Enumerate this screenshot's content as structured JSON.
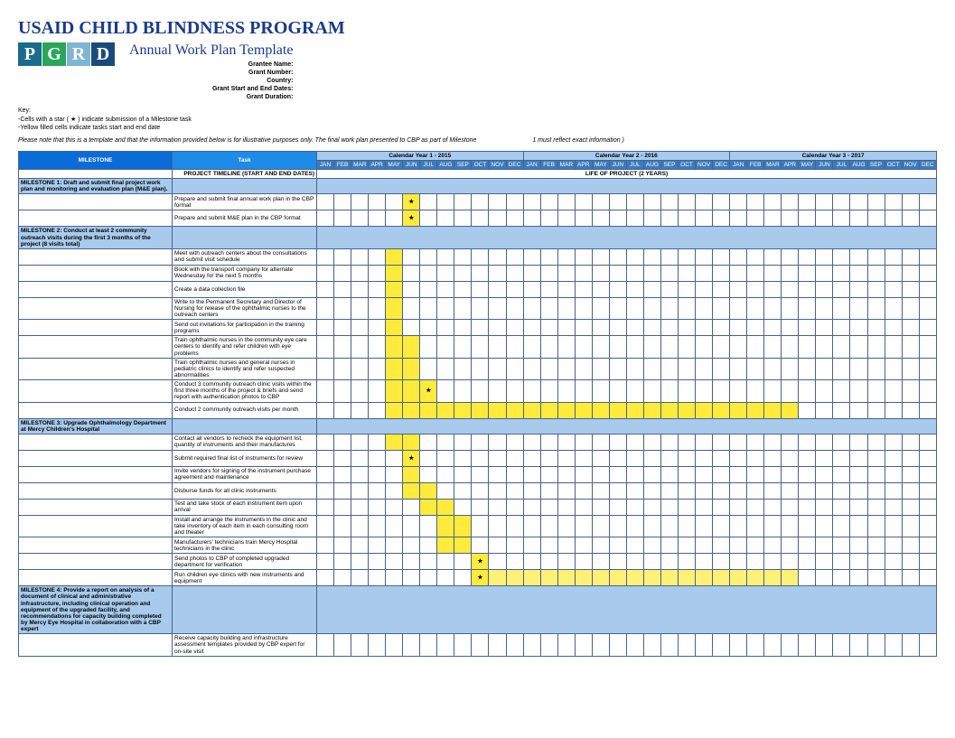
{
  "header": {
    "title": "USAID CHILD BLINDNESS PROGRAM",
    "subtitle": "Annual Work Plan Template",
    "logo": [
      {
        "letter": "P",
        "bg": "#1a6b8c"
      },
      {
        "letter": "G",
        "bg": "#2aa55a"
      },
      {
        "letter": "R",
        "bg": "#7fb5d1"
      },
      {
        "letter": "D",
        "bg": "#1a4a7a"
      }
    ],
    "meta_labels": [
      "Grantee Name:",
      "Grant Number:",
      "Country:",
      "Grant Start and End Dates:",
      "Grant Duration:"
    ]
  },
  "key": {
    "heading": "Key:",
    "lines": [
      "-Cells with a star ( ★ ) indicate submission of a Milestone task",
      "-Yellow filled cells indicate tasks start and end date"
    ]
  },
  "note": {
    "left": "Please note that this is a template and that the information provided below is for illustrative purposes only. The final work plan presented to CBP as part of Milestone",
    "right": "1 must reflect exact information )"
  },
  "columns": {
    "milestone": "MILESTONE",
    "task": "Task",
    "timeline_label": "PROJECT TIMELINE (START AND END DATES)",
    "life_label": "LIFE OF PROJECT (2 YEARS)",
    "years": [
      {
        "label": "Calendar Year 1 - 2015"
      },
      {
        "label": "Calendar Year 2 - 2016"
      },
      {
        "label": "Calendar Year 3 - 2017"
      }
    ],
    "months": [
      "JAN",
      "FEB",
      "MAR",
      "APR",
      "MAY",
      "JUN",
      "JUL",
      "AUG",
      "SEP",
      "OCT",
      "NOV",
      "DEC"
    ]
  },
  "milestones": [
    {
      "title": "MILESTONE 1: Draft and submit final project work plan and monitoring and evaluation plan (M&E plan).",
      "tasks": [
        {
          "text": "Prepare and submit final annual work plan in the CBP format",
          "cells": {
            "6": "star"
          }
        },
        {
          "text": "Prepare and submit M&E plan in the CBP format",
          "cells": {
            "6": "star"
          }
        }
      ]
    },
    {
      "title": "MILESTONE 2: Conduct at least 2 community outreach visits during the first 3 months of the project (8 visits total)",
      "tasks": [
        {
          "text": "Meet with outreach centers about the consultations and submit visit schedule",
          "cells": {
            "5": "y"
          }
        },
        {
          "text": "Book with the transport company for alternate Wednesday for the next 5 months",
          "cells": {
            "5": "y"
          }
        },
        {
          "text": "Create a data collection file",
          "cells": {
            "5": "y"
          }
        },
        {
          "text": "Write to the Permanent Secretary and Director of Nursing for release of the ophthalmic nurses to the outreach centers",
          "cells": {
            "5": "y"
          }
        },
        {
          "text": "Send out invitations for participation in the training programs",
          "cells": {
            "5": "y"
          }
        },
        {
          "text": "Train ophthalmic nurses in the community eye care centers to identify and refer children with eye problems",
          "cells": {
            "5": "y",
            "6": "y"
          }
        },
        {
          "text": "Train ophthalmic nurses and general nurses in pediatric clinics to identify and refer suspected abnormalities",
          "cells": {
            "5": "y",
            "6": "y"
          }
        },
        {
          "text": "Conduct 3 community outreach clinic visits within the first three months of the project & briefs and send report with authentication photos to CBP",
          "cells": {
            "5": "y",
            "6": "y",
            "7": "star"
          }
        },
        {
          "text": "Conduct 2 community outreach visits per month",
          "cells": {
            "5": "y",
            "6": "y",
            "7": "y",
            "8": "y",
            "9": "y",
            "10": "y",
            "11": "y",
            "12": "y",
            "13": "y",
            "14": "y",
            "15": "y",
            "16": "y",
            "17": "y",
            "18": "y",
            "19": "y",
            "20": "y",
            "21": "y",
            "22": "y",
            "23": "y",
            "24": "y",
            "25": "y",
            "26": "y",
            "27": "y",
            "28": "y"
          }
        }
      ]
    },
    {
      "title": "MILESTONE 3: Upgrade Ophthalmology Department at Mercy Children's Hospital",
      "tasks": [
        {
          "text": "Contact all vendors to recheck the equipment list, quantity of instruments and their manufactures",
          "cells": {
            "5": "y",
            "6": "y"
          }
        },
        {
          "text": "Submit required final list of instruments for review",
          "cells": {
            "6": "star"
          }
        },
        {
          "text": "Invite vendors for signing of the instrument purchase agreement and maintenance",
          "cells": {
            "6": "y"
          }
        },
        {
          "text": "Disburse funds for all clinic instruments",
          "cells": {
            "6": "y",
            "7": "y"
          }
        },
        {
          "text": "Test and take stock of each instrument item upon arrival",
          "cells": {
            "7": "y",
            "8": "y"
          }
        },
        {
          "text": "Install and arrange the instruments in the clinic and take inventory of each item in each consulting room and theater",
          "cells": {
            "8": "y",
            "9": "y"
          }
        },
        {
          "text": "Manufacturers' technicians train Mercy Hospital technicians in the clinic",
          "cells": {
            "8": "y",
            "9": "y"
          }
        },
        {
          "text": "Send photos to CBP of completed upgraded department for verification",
          "cells": {
            "10": "star"
          }
        },
        {
          "text": "Run children eye clinics with new instruments and equipment",
          "cells": {
            "10": "star",
            "11": "y2",
            "12": "y2",
            "13": "y2",
            "14": "y2",
            "15": "y2",
            "16": "y2",
            "17": "y2",
            "18": "y2",
            "19": "y2",
            "20": "y2",
            "21": "y2",
            "22": "y2",
            "23": "y2",
            "24": "y2",
            "25": "y2",
            "26": "y2",
            "27": "y2",
            "28": "y2"
          }
        }
      ]
    },
    {
      "title": "MILESTONE 4: Provide a report on analysis of a document of clinical and administrative infrastructure, including clinical operation and equipment of the upgraded facility, and recommendations for capacity building completed by Mercy Eye Hospital in collaboration with a CBP expert",
      "tasks": [
        {
          "text": "Receive capacity building and infrastructure assessment templates provided by CBP expert for on-site visit",
          "cells": {}
        }
      ]
    }
  ],
  "colors": {
    "header_blue": "#0b6bd9",
    "task_blue": "#1c8ce8",
    "year_bg": "#a8cbed",
    "month_bg": "#3a7bbd",
    "milestone_bg": "#a8cbed",
    "yellow": "#ffeb3b",
    "yellow2": "#fff176",
    "border": "#4a628a"
  }
}
